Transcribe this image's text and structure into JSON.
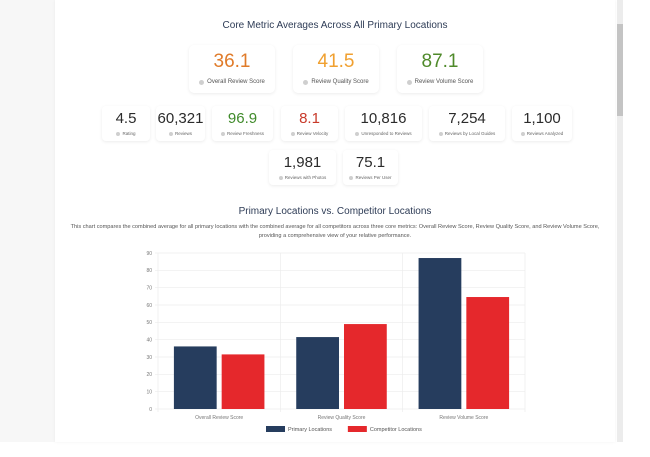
{
  "core_section": {
    "title": "Core Metric Averages Across All Primary Locations",
    "primary_metrics": [
      {
        "value": "36.1",
        "label": "Overall Review Score",
        "color": "#e07b2a"
      },
      {
        "value": "41.5",
        "label": "Review Quality Score",
        "color": "#f0a030"
      },
      {
        "value": "87.1",
        "label": "Review Volume Score",
        "color": "#4f8a2a"
      }
    ],
    "secondary_metrics": [
      {
        "value": "4.5",
        "label": "Rating",
        "color": "#2b2b2b"
      },
      {
        "value": "60,321",
        "label": "Reviews",
        "color": "#2b2b2b"
      },
      {
        "value": "96.9",
        "label": "Review Freshness",
        "color": "#3f8a2a"
      },
      {
        "value": "8.1",
        "label": "Review Velocity",
        "color": "#c83a2a"
      },
      {
        "value": "10,816",
        "label": "Unresponded to Reviews",
        "color": "#2b2b2b"
      },
      {
        "value": "7,254",
        "label": "Reviews by Local Guides",
        "color": "#2b2b2b"
      },
      {
        "value": "1,100",
        "label": "Reviews Analyzed",
        "color": "#2b2b2b"
      },
      {
        "value": "1,981",
        "label": "Reviews with Photos",
        "color": "#2b2b2b"
      },
      {
        "value": "75.1",
        "label": "Reviews Per User",
        "color": "#2b2b2b"
      }
    ]
  },
  "comparison_section": {
    "title": "Primary Locations vs. Competitor Locations",
    "description": "This chart compares the combined average for all primary locations with the combined average for all competitors across three core metrics: Overall Review Score, Review Quality Score, and Review Volume Score, providing a comprehensive view of your relative performance."
  },
  "chart_data": {
    "type": "bar",
    "title": "Primary Locations vs. Competitor Locations",
    "categories": [
      "Overall Review Score",
      "Review Quality Score",
      "Review Volume Score"
    ],
    "series": [
      {
        "name": "Primary Locations",
        "color": "#263d5e",
        "values": [
          36.1,
          41.5,
          87.1
        ]
      },
      {
        "name": "Competitor Locations",
        "color": "#e5282c",
        "values": [
          31.5,
          49.0,
          64.6
        ]
      }
    ],
    "xlabel": "",
    "ylabel": "",
    "ylim": [
      0,
      90
    ],
    "yticks": [
      0,
      10,
      20,
      30,
      40,
      50,
      60,
      70,
      80,
      90
    ],
    "grid": true,
    "legend": "bottom"
  }
}
